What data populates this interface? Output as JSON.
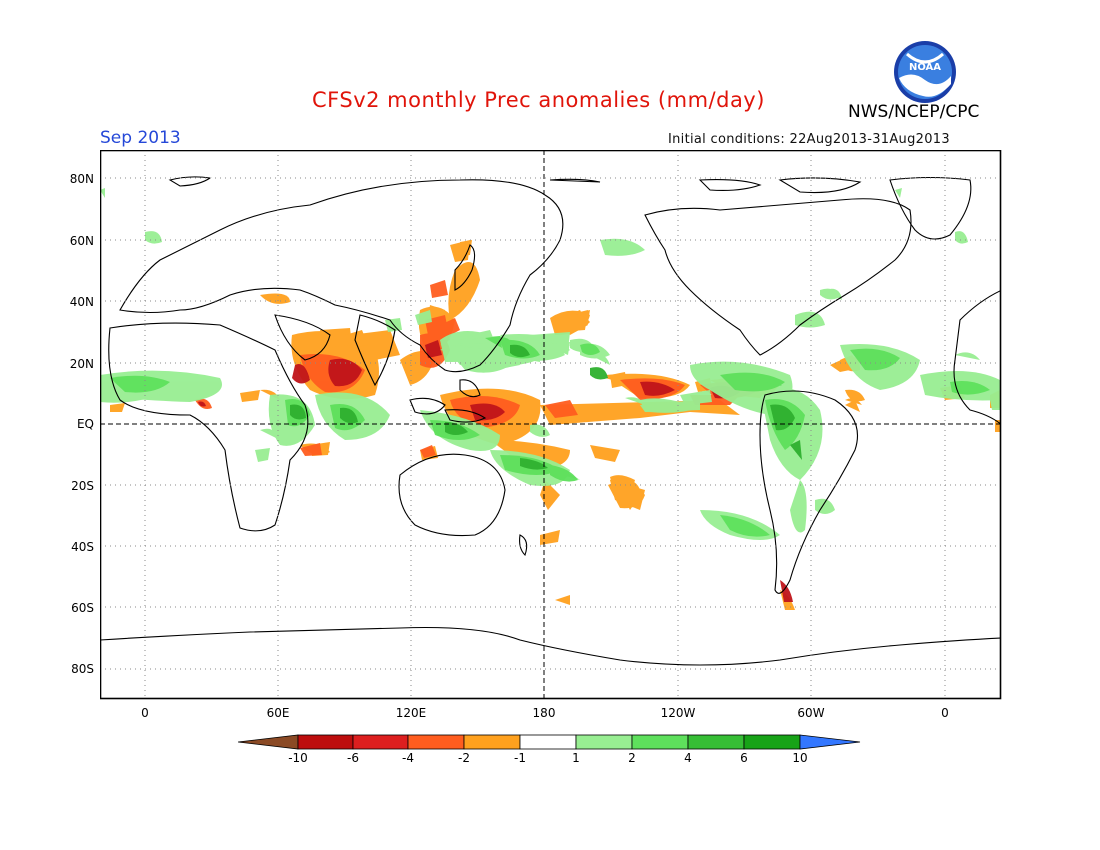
{
  "header": {
    "title": "CFSv2 monthly Prec anomalies (mm/day)",
    "org": "NWS/NCEP/CPC",
    "month": "Sep 2013",
    "initial_conditions": "Initial conditions: 22Aug2013-31Aug2013",
    "logo_text": "NOAA"
  },
  "map": {
    "lat_labels": [
      "80N",
      "60N",
      "40N",
      "20N",
      "EQ",
      "20S",
      "40S",
      "60S",
      "80S"
    ],
    "lon_labels": [
      "0",
      "60E",
      "120E",
      "180",
      "120W",
      "60W",
      "0"
    ]
  },
  "colorbar": {
    "units": "mm/day",
    "tick_labels": [
      "-10",
      "-6",
      "-4",
      "-2",
      "-1",
      "1",
      "2",
      "4",
      "6",
      "10"
    ],
    "colors": [
      "#8b4a25",
      "#bd0d0d",
      "#dd1f1f",
      "#ff5d1f",
      "#ffa11e",
      "#ffffff",
      "#98ee92",
      "#5ee05c",
      "#36be35",
      "#17a317",
      "#3377ff"
    ]
  },
  "colors": {
    "title": "#e0140a",
    "month": "#2548d8",
    "dry_strong": "#c0141a",
    "dry_mod": "#ff5d1f",
    "dry_weak": "#ffa11e",
    "wet_weak": "#98ee92",
    "wet_mod": "#5ee05c",
    "wet_strong": "#2fb02f"
  }
}
